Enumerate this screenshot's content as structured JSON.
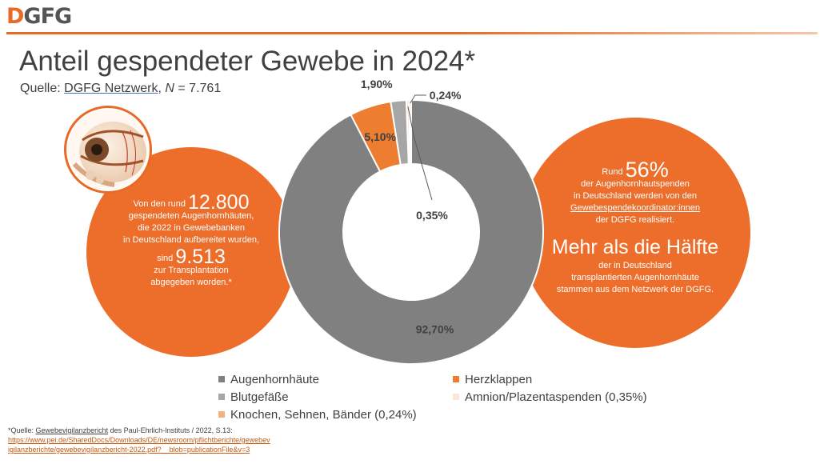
{
  "logo": {
    "d": "D",
    "gfg": "GFG"
  },
  "title": "Anteil gespendeter Gewebe in 2024*",
  "source": {
    "prefix": "Quelle: ",
    "link": "DGFG Netzwerk",
    "sep": ", ",
    "n_label": "N",
    "n_value": " = 7.761"
  },
  "chart_data": {
    "type": "pie",
    "categories": [
      "Augenhornhäute",
      "Herzklappen",
      "Blutgefäße",
      "Amnion/Plazentaspenden",
      "Knochen, Sehnen, Bänder"
    ],
    "values": [
      92.7,
      5.1,
      1.9,
      0.35,
      0.24
    ],
    "data_labels": [
      "92,70%",
      "5,10%",
      "1,90%",
      "0,35%",
      "0,24%"
    ],
    "colors": [
      "#808080",
      "#ed7d31",
      "#a6a6a6",
      "#fbe5d6",
      "#f4b183"
    ],
    "legend": [
      "Augenhornhäute",
      "Herzklappen",
      "Blutgefäße",
      "Amnion/Plazentaspenden (0,35%)",
      "Knochen, Sehnen, Bänder (0,24%)"
    ],
    "legend_position": "bottom",
    "style": "donut"
  },
  "left_bubble": {
    "l1_pre": "Von den rund ",
    "l1_big": "12.800",
    "l2": "gespendeten Augenhornhäuten,",
    "l3": "die 2022 in Gewebebanken",
    "l4": "in Deutschland aufbereitet wurden,",
    "l5_pre": "sind ",
    "l5_big": "9.513",
    "l6": "zur Transplantation",
    "l7": "abgegeben worden.*"
  },
  "right_bubble": {
    "l1_pre": "Rund ",
    "l1_big": "56%",
    "l2": "der Augenhornhautspenden",
    "l3": "in Deutschland werden von den",
    "l4": "Gewebespendekoordinator:innen",
    "l5": "der DGFG realisiert.",
    "headline": "Mehr als die Hälfte",
    "l6": "der in Deutschland",
    "l7": "transplantierten Augenhornhäute",
    "l8": "stammen aus dem Netzwerk der DGFG."
  },
  "footnote": {
    "prefix": "*Quelle: ",
    "link": "Gewebevigilanzbericht",
    "rest": " des Paul-Ehrlich-Instituts / 2022, S.13:",
    "url1": "https://www.pei.de/SharedDocs/Downloads/DE/newsroom/pflichtberichte/gewebev",
    "url2": "igilanzberichte/gewebevigilanzbericht-2022.pdf?__blob=publicationFile&v=3"
  }
}
